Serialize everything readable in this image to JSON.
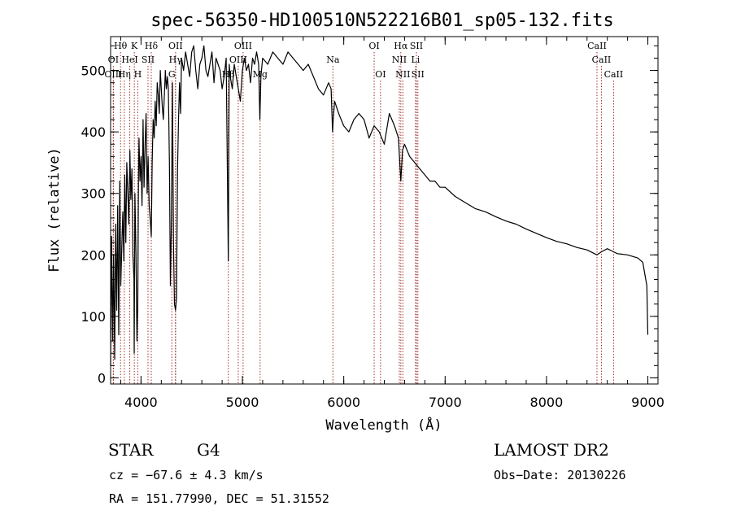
{
  "chart_data": {
    "type": "line",
    "title": "spec-56350-HD100510N522216B01_sp05-132.fits",
    "xlabel": "Wavelength (Å)",
    "ylabel": "Flux (relative)",
    "xlim": [
      3700,
      9100
    ],
    "ylim": [
      -10,
      555
    ],
    "x_ticks": [
      4000,
      5000,
      6000,
      7000,
      8000,
      9000
    ],
    "y_ticks": [
      0,
      100,
      200,
      300,
      400,
      500
    ],
    "grid": false,
    "series": [
      {
        "x": [
          3700,
          3710,
          3720,
          3730,
          3740,
          3750,
          3760,
          3770,
          3780,
          3790,
          3800,
          3810,
          3820,
          3830,
          3840,
          3850,
          3860,
          3870,
          3880,
          3890,
          3900,
          3910,
          3920,
          3930,
          3933,
          3940,
          3950,
          3960,
          3968,
          3975,
          3980,
          3990,
          4000,
          4010,
          4020,
          4030,
          4040,
          4050,
          4060,
          4070,
          4080,
          4090,
          4101,
          4110,
          4120,
          4130,
          4140,
          4150,
          4160,
          4170,
          4180,
          4190,
          4200,
          4210,
          4220,
          4230,
          4240,
          4250,
          4260,
          4270,
          4280,
          4290,
          4300,
          4310,
          4320,
          4330,
          4340,
          4350,
          4360,
          4370,
          4380,
          4390,
          4400,
          4420,
          4440,
          4460,
          4480,
          4500,
          4520,
          4540,
          4560,
          4580,
          4600,
          4620,
          4640,
          4660,
          4680,
          4700,
          4720,
          4740,
          4760,
          4780,
          4800,
          4820,
          4840,
          4861,
          4870,
          4880,
          4900,
          4920,
          4940,
          4960,
          4980,
          5000,
          5020,
          5040,
          5060,
          5080,
          5100,
          5120,
          5140,
          5160,
          5172,
          5183,
          5200,
          5250,
          5300,
          5350,
          5400,
          5450,
          5500,
          5550,
          5600,
          5650,
          5700,
          5750,
          5800,
          5850,
          5875,
          5890,
          5896,
          5910,
          5950,
          6000,
          6050,
          6100,
          6150,
          6200,
          6250,
          6300,
          6350,
          6400,
          6450,
          6500,
          6540,
          6563,
          6580,
          6600,
          6650,
          6700,
          6750,
          6800,
          6850,
          6900,
          6950,
          7000,
          7100,
          7200,
          7300,
          7400,
          7500,
          7600,
          7700,
          7800,
          7900,
          8000,
          8100,
          8200,
          8300,
          8400,
          8498,
          8542,
          8600,
          8662,
          8700,
          8800,
          8900,
          8950,
          8990,
          9000
        ],
        "values": [
          20,
          230,
          60,
          200,
          30,
          250,
          110,
          280,
          70,
          320,
          150,
          210,
          270,
          190,
          330,
          220,
          350,
          300,
          250,
          370,
          290,
          340,
          200,
          160,
          40,
          300,
          200,
          60,
          120,
          330,
          390,
          320,
          360,
          280,
          420,
          310,
          380,
          430,
          300,
          360,
          280,
          260,
          230,
          350,
          420,
          390,
          450,
          410,
          480,
          460,
          430,
          500,
          470,
          440,
          420,
          460,
          500,
          470,
          490,
          470,
          350,
          150,
          260,
          480,
          220,
          120,
          110,
          130,
          340,
          420,
          480,
          430,
          520,
          500,
          530,
          510,
          490,
          530,
          540,
          500,
          470,
          510,
          520,
          540,
          500,
          490,
          510,
          530,
          480,
          520,
          510,
          500,
          470,
          490,
          520,
          190,
          510,
          490,
          470,
          510,
          490,
          470,
          450,
          500,
          520,
          500,
          510,
          480,
          520,
          510,
          530,
          510,
          420,
          490,
          520,
          510,
          530,
          520,
          510,
          530,
          520,
          510,
          500,
          510,
          490,
          470,
          460,
          480,
          470,
          400,
          420,
          450,
          430,
          410,
          400,
          420,
          430,
          420,
          390,
          410,
          400,
          380,
          430,
          410,
          390,
          320,
          370,
          380,
          360,
          350,
          340,
          330,
          320,
          320,
          310,
          310,
          295,
          285,
          275,
          270,
          262,
          255,
          250,
          242,
          235,
          228,
          222,
          218,
          212,
          208,
          200,
          205,
          210,
          205,
          202,
          200,
          195,
          188,
          150,
          70
        ]
      }
    ],
    "lines": [
      {
        "label": "Hθ",
        "wavelength": 3798,
        "row": 1
      },
      {
        "label": "K",
        "wavelength": 3934,
        "row": 1
      },
      {
        "label": "Hδ",
        "wavelength": 4101,
        "row": 1
      },
      {
        "label": "OII",
        "wavelength": 4341,
        "row": 1
      },
      {
        "label": "OIII",
        "wavelength": 5007,
        "row": 1
      },
      {
        "label": "OI",
        "wavelength": 6300,
        "row": 1
      },
      {
        "label": "Hα",
        "wavelength": 6563,
        "row": 1
      },
      {
        "label": "SII",
        "wavelength": 6717,
        "row": 1
      },
      {
        "label": "CaII",
        "wavelength": 8498,
        "row": 1
      },
      {
        "label": "OI",
        "wavelength": 3727,
        "row": 2
      },
      {
        "label": "HeI",
        "wavelength": 3889,
        "row": 2
      },
      {
        "label": "SII",
        "wavelength": 4069,
        "row": 2
      },
      {
        "label": "Hγ",
        "wavelength": 4340,
        "row": 2
      },
      {
        "label": "OIII",
        "wavelength": 4959,
        "row": 2
      },
      {
        "label": "Na",
        "wavelength": 5893,
        "row": 2
      },
      {
        "label": "NII",
        "wavelength": 6548,
        "row": 2
      },
      {
        "label": "Li",
        "wavelength": 6708,
        "row": 2
      },
      {
        "label": "CaII",
        "wavelength": 8542,
        "row": 2
      },
      {
        "label": "OIII",
        "wavelength": 3727,
        "row": 3
      },
      {
        "label": "Hη",
        "wavelength": 3835,
        "row": 3
      },
      {
        "label": "H",
        "wavelength": 3968,
        "row": 3
      },
      {
        "label": "G",
        "wavelength": 4304,
        "row": 3
      },
      {
        "label": "Hβ",
        "wavelength": 4861,
        "row": 3
      },
      {
        "label": "Mg",
        "wavelength": 5175,
        "row": 3
      },
      {
        "label": "OI",
        "wavelength": 6363,
        "row": 3
      },
      {
        "label": "NII",
        "wavelength": 6583,
        "row": 3
      },
      {
        "label": "SII",
        "wavelength": 6731,
        "row": 3
      },
      {
        "label": "CaII",
        "wavelength": 8662,
        "row": 3
      }
    ],
    "line_color": "#a0302a",
    "curve_color": "#000000"
  },
  "info": {
    "class": "STAR",
    "subclass": "G4",
    "survey": "LAMOST DR2",
    "cz": "cz = −67.6 ± 4.3 km/s",
    "obs_date": "Obs−Date: 20130226",
    "coords": "RA = 151.77990, DEC =  51.31552"
  }
}
